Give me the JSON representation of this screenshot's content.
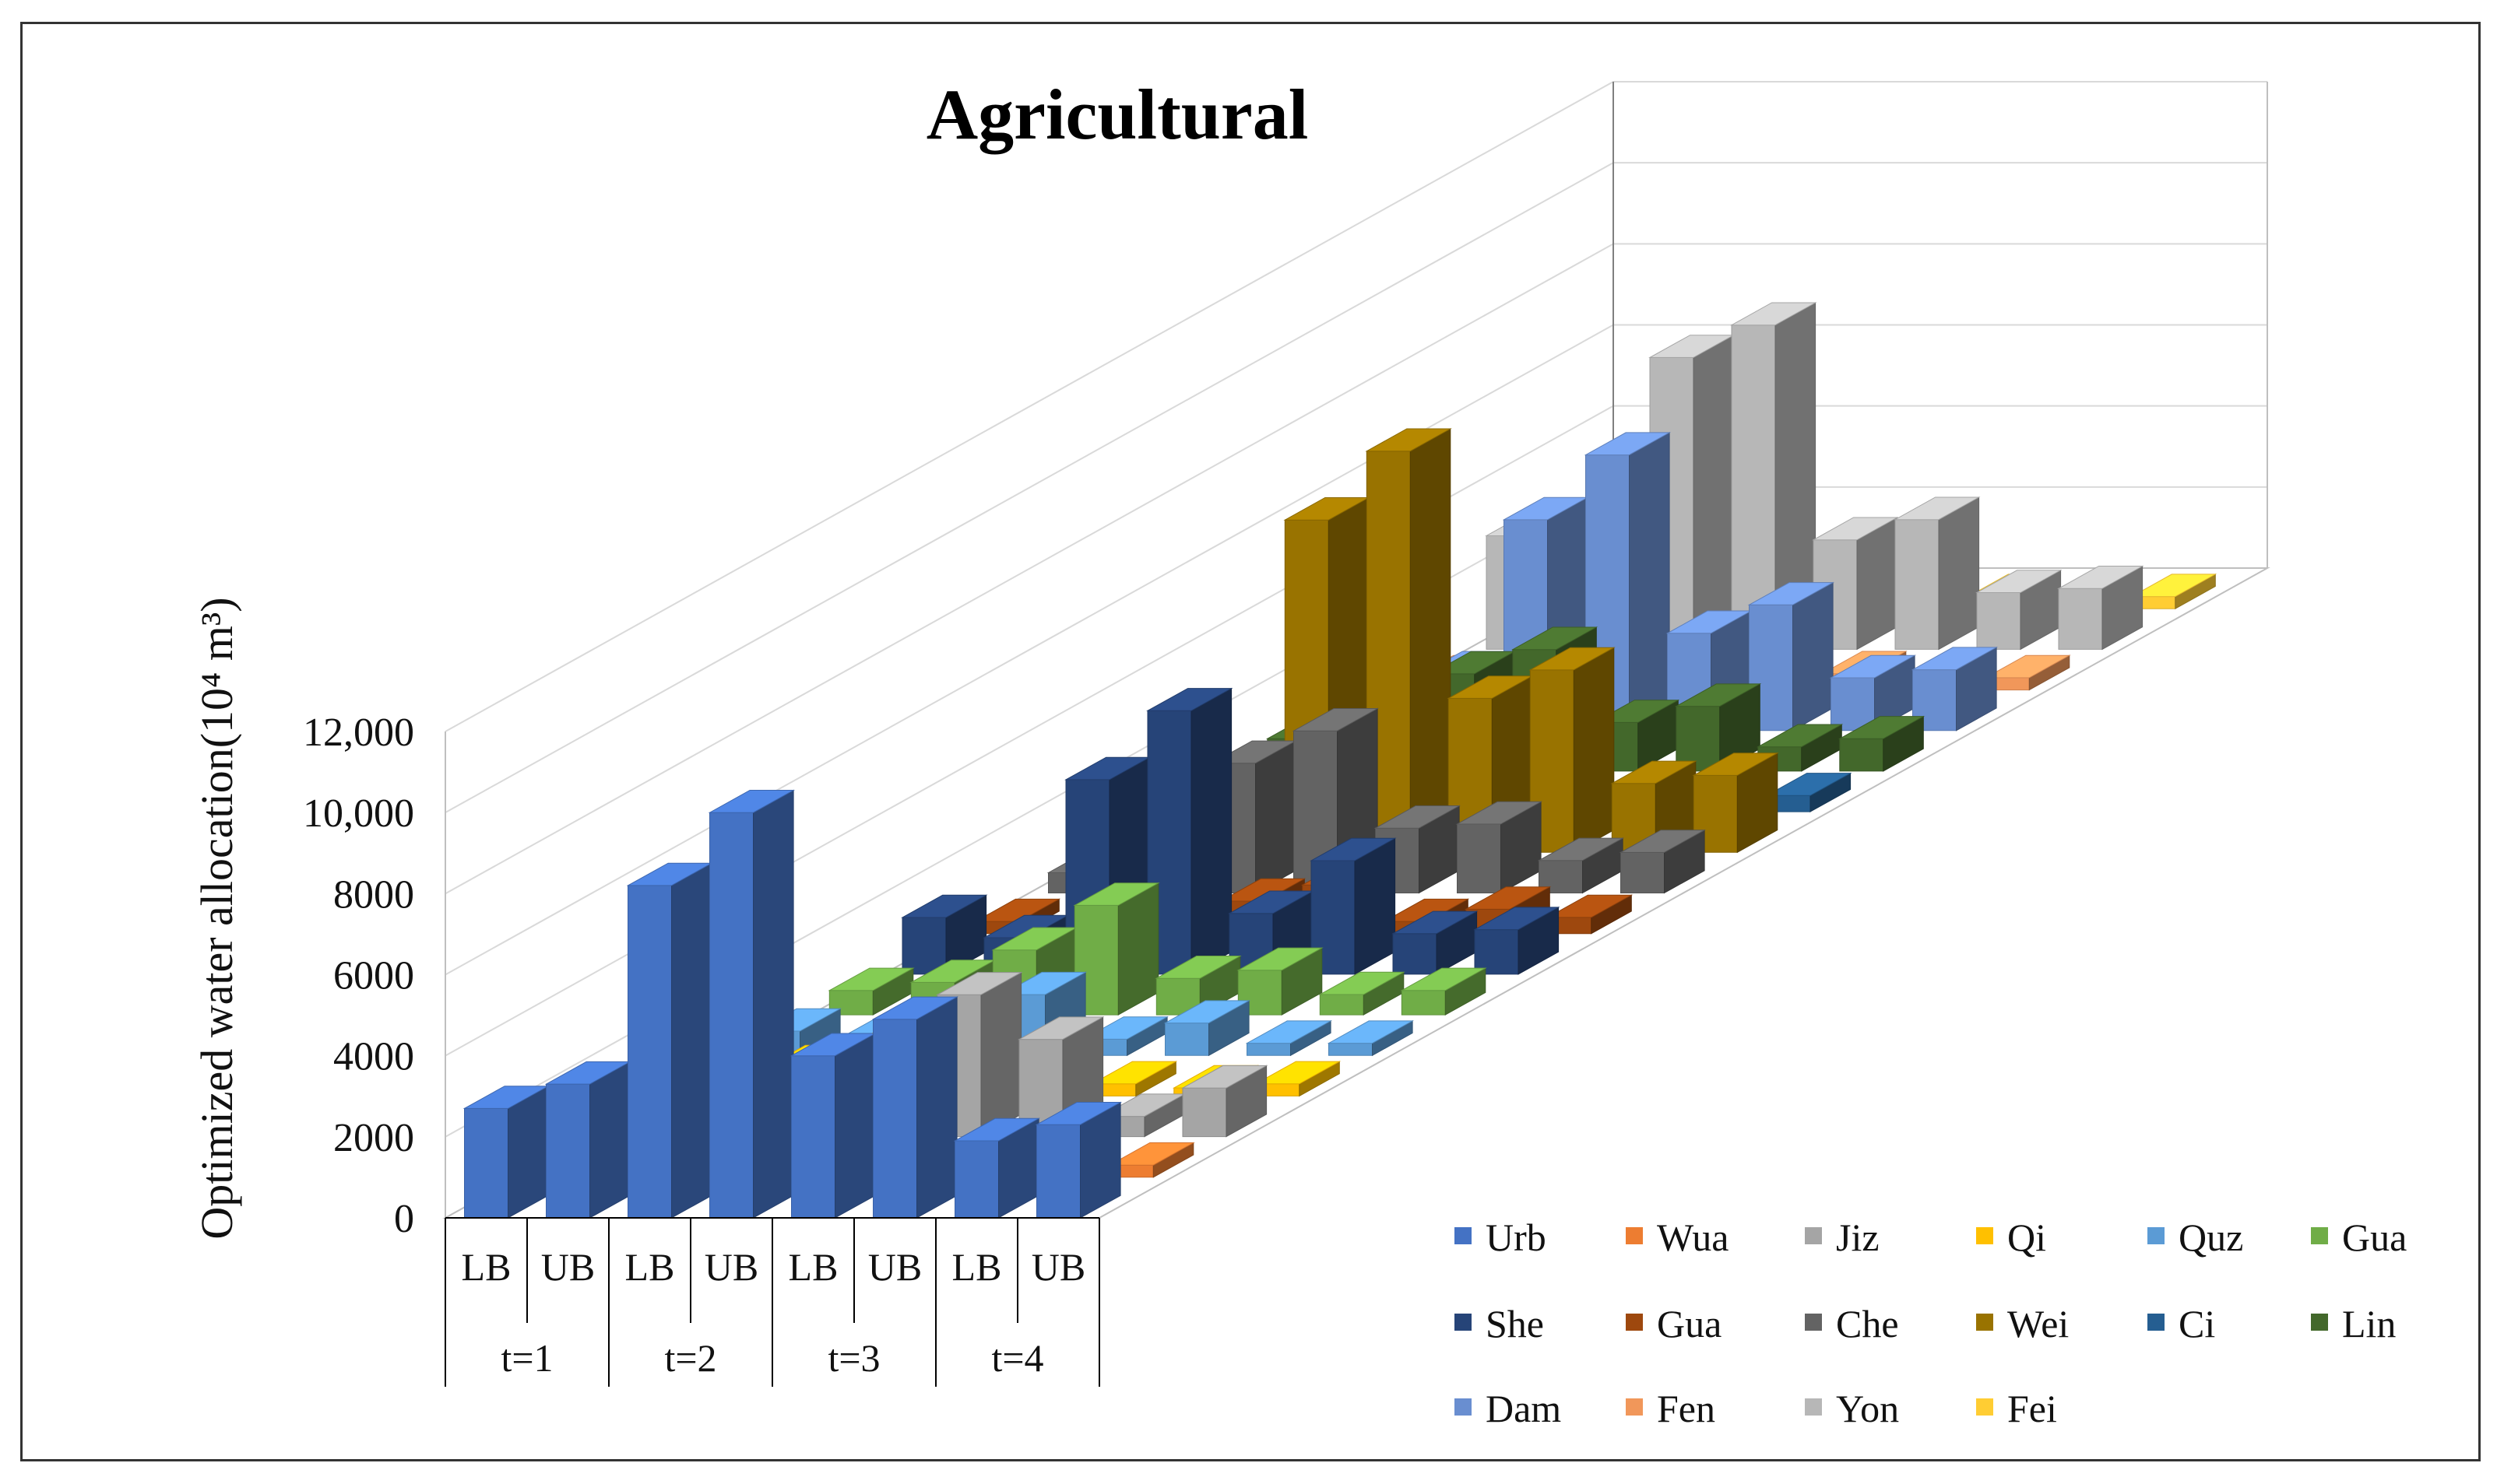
{
  "chart_data": {
    "type": "bar",
    "subtype": "3d-column",
    "title": "Agricultural",
    "ylabel": "Optimized water allocation(10⁴ m³)",
    "xlabel": "",
    "ylim": [
      0,
      12000
    ],
    "yticks": [
      0,
      2000,
      4000,
      6000,
      8000,
      10000,
      12000
    ],
    "ytick_labels": [
      "0",
      "2000",
      "4000",
      "6000",
      "8000",
      "10,000",
      "12,000"
    ],
    "categories": [
      "LB",
      "UB",
      "LB",
      "UB",
      "LB",
      "UB",
      "LB",
      "UB"
    ],
    "category_groups": [
      "t=1",
      "t=2",
      "t=3",
      "t=4"
    ],
    "legend_position": "bottom-right",
    "series": [
      {
        "name": "Urb",
        "color": "#4472C4",
        "values": [
          2700,
          3300,
          8200,
          10000,
          4000,
          4900,
          1900,
          2300
        ]
      },
      {
        "name": "Wua",
        "color": "#ED7D31",
        "values": [
          100,
          300,
          300,
          1000,
          1000,
          200,
          400,
          300
        ]
      },
      {
        "name": "Jiz",
        "color": "#A5A5A5",
        "values": [
          300,
          600,
          1000,
          1500,
          3500,
          2400,
          500,
          1200
        ]
      },
      {
        "name": "Qi",
        "color": "#FFC000",
        "values": [
          500,
          700,
          1200,
          800,
          800,
          300,
          200,
          300
        ]
      },
      {
        "name": "Quz",
        "color": "#5B9BD5",
        "values": [
          600,
          400,
          600,
          1500,
          400,
          800,
          300,
          300
        ]
      },
      {
        "name": "Gua",
        "color": "#70AD47",
        "values": [
          600,
          800,
          1600,
          2700,
          900,
          1100,
          500,
          600
        ]
      },
      {
        "name": "She",
        "color": "#264478",
        "values": [
          1400,
          900,
          4800,
          6500,
          1500,
          2800,
          1000,
          1100
        ]
      },
      {
        "name": "Gua",
        "color": "#9E480E",
        "values": [
          300,
          300,
          600,
          800,
          1200,
          300,
          600,
          400
        ]
      },
      {
        "name": "Che",
        "color": "#636363",
        "values": [
          500,
          800,
          3200,
          4000,
          1600,
          1700,
          800,
          1000
        ]
      },
      {
        "name": "Wei",
        "color": "#997300",
        "values": [
          1100,
          1000,
          8200,
          9900,
          3800,
          4500,
          1700,
          1900
        ]
      },
      {
        "name": "Ci",
        "color": "#255E91",
        "values": [
          100,
          200,
          300,
          200,
          300,
          200,
          300,
          400
        ]
      },
      {
        "name": "Lin",
        "color": "#43682B",
        "values": [
          800,
          1200,
          2400,
          3000,
          1200,
          1600,
          600,
          800
        ]
      },
      {
        "name": "Dam",
        "color": "#698ED0",
        "values": [
          800,
          1400,
          5200,
          6800,
          2400,
          3100,
          1300,
          1500
        ]
      },
      {
        "name": "Fen",
        "color": "#F1975A",
        "values": [
          300,
          400,
          800,
          900,
          600,
          400,
          300,
          300
        ]
      },
      {
        "name": "Yon",
        "color": "#B7B7B7",
        "values": [
          2800,
          3200,
          7200,
          8000,
          2700,
          3200,
          1400,
          1500
        ]
      },
      {
        "name": "Fei",
        "color": "#FFCD33",
        "values": [
          300,
          400,
          700,
          800,
          600,
          300,
          200,
          300
        ]
      }
    ]
  }
}
